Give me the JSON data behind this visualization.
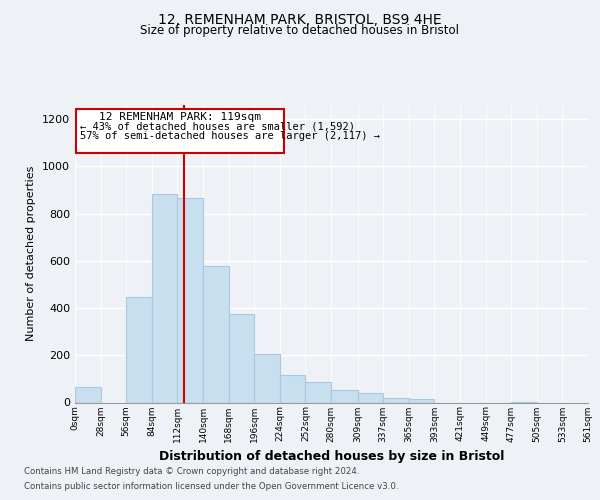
{
  "title": "12, REMENHAM PARK, BRISTOL, BS9 4HE",
  "subtitle": "Size of property relative to detached houses in Bristol",
  "xlabel": "Distribution of detached houses by size in Bristol",
  "ylabel": "Number of detached properties",
  "bar_color": "#c8dff0",
  "bar_edge_color": "#aac8e0",
  "vline_color": "#cc0000",
  "vline_x": 119,
  "annotation_title": "12 REMENHAM PARK: 119sqm",
  "annotation_line1": "← 43% of detached houses are smaller (1,592)",
  "annotation_line2": "57% of semi-detached houses are larger (2,117) →",
  "footnote1": "Contains HM Land Registry data © Crown copyright and database right 2024.",
  "footnote2": "Contains public sector information licensed under the Open Government Licence v3.0.",
  "bin_edges": [
    0,
    28,
    56,
    84,
    112,
    140,
    168,
    196,
    224,
    252,
    280,
    309,
    337,
    365,
    393,
    421,
    449,
    477,
    505,
    533,
    561
  ],
  "bin_labels": [
    "0sqm",
    "28sqm",
    "56sqm",
    "84sqm",
    "112sqm",
    "140sqm",
    "168sqm",
    "196sqm",
    "224sqm",
    "252sqm",
    "280sqm",
    "309sqm",
    "337sqm",
    "365sqm",
    "393sqm",
    "421sqm",
    "449sqm",
    "477sqm",
    "505sqm",
    "533sqm",
    "561sqm"
  ],
  "counts": [
    65,
    0,
    445,
    885,
    865,
    580,
    375,
    205,
    115,
    88,
    55,
    42,
    18,
    14,
    0,
    0,
    0,
    4,
    0,
    0
  ],
  "ylim": [
    0,
    1260
  ],
  "yticks": [
    0,
    200,
    400,
    600,
    800,
    1000,
    1200
  ],
  "background_color": "#eef2f7"
}
